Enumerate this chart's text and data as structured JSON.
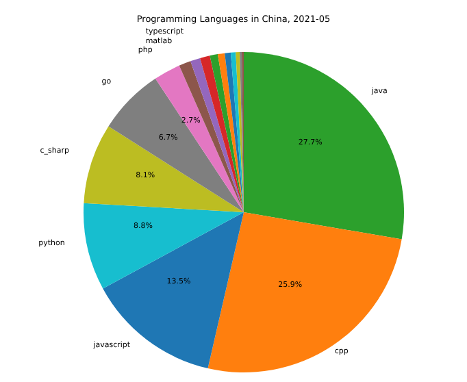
{
  "chart_data": {
    "type": "pie",
    "title": "Programming Languages in China, 2021-05",
    "categories": [
      "java",
      "cpp",
      "javascript",
      "python",
      "c_sharp",
      "go",
      "php",
      "matlab",
      "typescript",
      null,
      null,
      null,
      null,
      null,
      null,
      null,
      null
    ],
    "values": [
      27.7,
      25.9,
      13.5,
      8.8,
      8.1,
      6.7,
      2.7,
      1.2,
      1.0,
      1.0,
      0.8,
      0.7,
      0.6,
      0.5,
      0.4,
      0.2,
      0.2
    ],
    "colors": [
      "#2ca02c",
      "#ff7f0e",
      "#1f77b4",
      "#17becf",
      "#bcbd22",
      "#7f7f7f",
      "#e377c2",
      "#8c564b",
      "#9467bd",
      "#d62728",
      "#2ca02c",
      "#ff7f0e",
      "#1f77b4",
      "#17becf",
      "#bcbd22",
      "#7f7f7f",
      "#8c564b"
    ],
    "value_labels": [
      "27.7%",
      "25.9%",
      "13.5%",
      "8.8%",
      "8.1%",
      "6.7%",
      "2.7%",
      null,
      null,
      null,
      null,
      null,
      null,
      null,
      null,
      null,
      null
    ]
  }
}
